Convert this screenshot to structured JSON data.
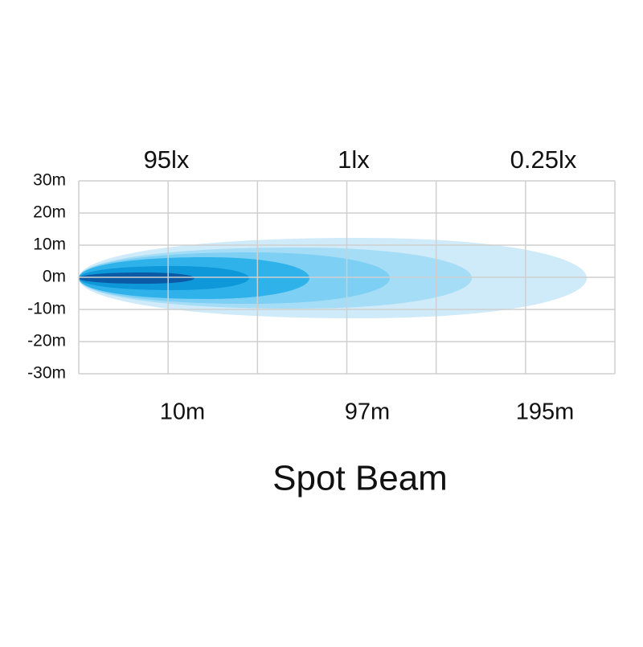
{
  "title": "Spot Beam",
  "y_axis_labels": [
    "30m",
    "20m",
    "10m",
    "0m",
    "-10m",
    "-20m",
    "-30m"
  ],
  "lux_labels": [
    "95lx",
    "1lx",
    "0.25lx"
  ],
  "distance_labels": [
    "10m",
    "97m",
    "195m"
  ]
}
